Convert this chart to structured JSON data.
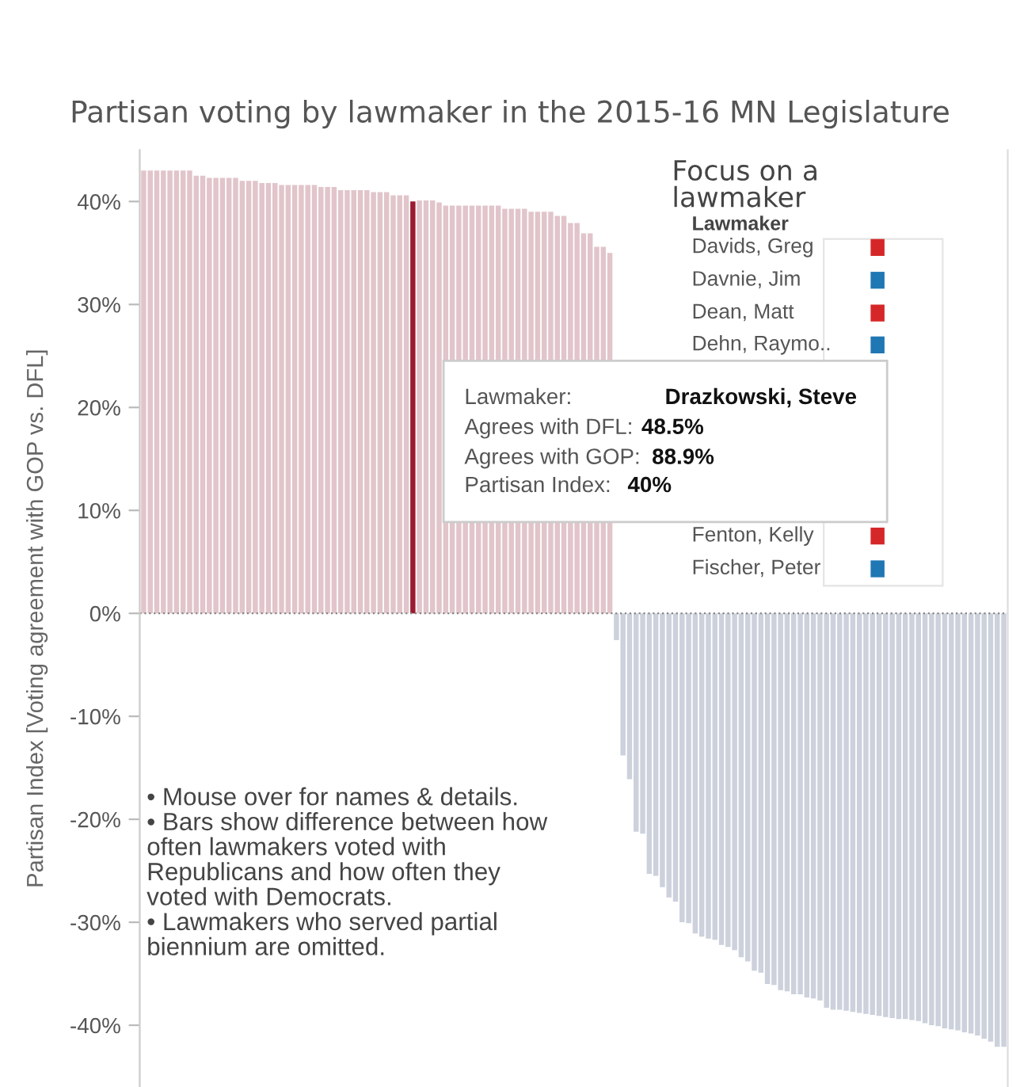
{
  "chart_data": {
    "type": "bar",
    "title": "Partisan voting by lawmaker in the 2015-16 MN Legislature",
    "ylabel": "Partisan Index [Voting agreement with GOP vs. DFL]",
    "categories": [
      null,
      null,
      null,
      null,
      null,
      null,
      null,
      null,
      null,
      null,
      null,
      null,
      null,
      null,
      null,
      null,
      null,
      null,
      null,
      null,
      null,
      null,
      null,
      null,
      null,
      null,
      null,
      null,
      null,
      null,
      null,
      null,
      null,
      null,
      null,
      null,
      null,
      null,
      null,
      null,
      null,
      null,
      null,
      null,
      null,
      null,
      null,
      null,
      null,
      null,
      null,
      null,
      null,
      null,
      null,
      null,
      null,
      null,
      null,
      null,
      null,
      null,
      null,
      null,
      null,
      null,
      null,
      null,
      null,
      null,
      null,
      null,
      null,
      null,
      null,
      null,
      null,
      null,
      null,
      null,
      null,
      null,
      null,
      null,
      null,
      null,
      null,
      null,
      null,
      null,
      null,
      null,
      null,
      null,
      null,
      null,
      null,
      null,
      null,
      null,
      null,
      null,
      null,
      null,
      null,
      null,
      null,
      null,
      null,
      null,
      null,
      null,
      null,
      null,
      null,
      null,
      null,
      null,
      null,
      null,
      null,
      null,
      null,
      null,
      null,
      null,
      null,
      null,
      null,
      null,
      null,
      null
    ],
    "values": [
      43.0,
      43.0,
      43.0,
      43.0,
      43.0,
      43.0,
      43.0,
      43.0,
      42.5,
      42.5,
      42.3,
      42.3,
      42.3,
      42.3,
      42.3,
      42.0,
      42.0,
      42.0,
      41.8,
      41.8,
      41.8,
      41.6,
      41.6,
      41.6,
      41.6,
      41.6,
      41.6,
      41.4,
      41.4,
      41.4,
      41.1,
      41.1,
      41.1,
      41.1,
      41.1,
      40.9,
      40.9,
      40.9,
      40.6,
      40.6,
      40.6,
      40,
      40.1,
      40.1,
      40.1,
      39.9,
      39.6,
      39.6,
      39.6,
      39.6,
      39.6,
      39.6,
      39.6,
      39.6,
      39.6,
      39.3,
      39.3,
      39.3,
      39.3,
      39.0,
      39.0,
      39.0,
      39.0,
      38.6,
      38.6,
      37.9,
      37.9,
      36.9,
      36.9,
      35.6,
      35.6,
      35.0,
      -2.6,
      -13.8,
      -16.1,
      -21.2,
      -21.4,
      -25.3,
      -25.5,
      -26.6,
      -27.6,
      -28.0,
      -30.0,
      -30.1,
      -31.1,
      -31.4,
      -31.6,
      -31.7,
      -32.2,
      -32.4,
      -32.7,
      -33.4,
      -33.8,
      -34.7,
      -34.9,
      -36.0,
      -36.1,
      -36.6,
      -36.7,
      -37.0,
      -37.0,
      -37.3,
      -37.4,
      -37.6,
      -38.3,
      -38.5,
      -38.5,
      -38.6,
      -38.7,
      -38.8,
      -38.9,
      -39.0,
      -39.1,
      -39.2,
      -39.3,
      -39.4,
      -39.4,
      -39.5,
      -39.6,
      -39.8,
      -40.0,
      -40.1,
      -40.3,
      -40.4,
      -40.5,
      -40.7,
      -40.8,
      -41.0,
      -41.3,
      -41.6,
      -42.1,
      -42.1
    ],
    "colors": [
      "#e1c5ca",
      "#e1c5ca",
      "#e1c5ca",
      "#e1c5ca",
      "#e1c5ca",
      "#e1c5ca",
      "#e1c5ca",
      "#e1c5ca",
      "#e1c5ca",
      "#e1c5ca",
      "#e1c5ca",
      "#e1c5ca",
      "#e1c5ca",
      "#e1c5ca",
      "#e1c5ca",
      "#e1c5ca",
      "#e1c5ca",
      "#e1c5ca",
      "#e1c5ca",
      "#e1c5ca",
      "#e1c5ca",
      "#e1c5ca",
      "#e1c5ca",
      "#e1c5ca",
      "#e1c5ca",
      "#e1c5ca",
      "#e1c5ca",
      "#e1c5ca",
      "#e1c5ca",
      "#e1c5ca",
      "#e1c5ca",
      "#e1c5ca",
      "#e1c5ca",
      "#e1c5ca",
      "#e1c5ca",
      "#e1c5ca",
      "#e1c5ca",
      "#e1c5ca",
      "#e1c5ca",
      "#e1c5ca",
      "#e1c5ca",
      "#9b1b30",
      "#e1c5ca",
      "#e1c5ca",
      "#e1c5ca",
      "#e1c5ca",
      "#e1c5ca",
      "#e1c5ca",
      "#e1c5ca",
      "#e1c5ca",
      "#e1c5ca",
      "#e1c5ca",
      "#e1c5ca",
      "#e1c5ca",
      "#e1c5ca",
      "#e1c5ca",
      "#e1c5ca",
      "#e1c5ca",
      "#e1c5ca",
      "#e1c5ca",
      "#e1c5ca",
      "#e1c5ca",
      "#e1c5ca",
      "#e1c5ca",
      "#e1c5ca",
      "#e1c5ca",
      "#e1c5ca",
      "#e1c5ca",
      "#e1c5ca",
      "#e1c5ca",
      "#e1c5ca",
      "#e1c5ca",
      "#ccd1dc",
      "#ccd1dc",
      "#ccd1dc",
      "#ccd1dc",
      "#ccd1dc",
      "#ccd1dc",
      "#ccd1dc",
      "#ccd1dc",
      "#ccd1dc",
      "#ccd1dc",
      "#ccd1dc",
      "#ccd1dc",
      "#ccd1dc",
      "#ccd1dc",
      "#ccd1dc",
      "#ccd1dc",
      "#ccd1dc",
      "#ccd1dc",
      "#ccd1dc",
      "#ccd1dc",
      "#ccd1dc",
      "#ccd1dc",
      "#ccd1dc",
      "#ccd1dc",
      "#ccd1dc",
      "#ccd1dc",
      "#ccd1dc",
      "#ccd1dc",
      "#ccd1dc",
      "#ccd1dc",
      "#ccd1dc",
      "#ccd1dc",
      "#ccd1dc",
      "#ccd1dc",
      "#ccd1dc",
      "#ccd1dc",
      "#ccd1dc",
      "#ccd1dc",
      "#ccd1dc",
      "#ccd1dc",
      "#ccd1dc",
      "#ccd1dc",
      "#ccd1dc",
      "#ccd1dc",
      "#ccd1dc",
      "#ccd1dc",
      "#ccd1dc",
      "#ccd1dc",
      "#ccd1dc",
      "#ccd1dc",
      "#ccd1dc",
      "#ccd1dc",
      "#ccd1dc",
      "#ccd1dc",
      "#ccd1dc",
      "#ccd1dc",
      "#ccd1dc",
      "#ccd1dc",
      "#ccd1dc",
      "#ccd1dc"
    ],
    "ylim": [
      -46,
      45
    ],
    "yticks": [
      {
        "value": -40,
        "label": "-40%"
      },
      {
        "value": -30,
        "label": "-30%"
      },
      {
        "value": -20,
        "label": "-20%"
      },
      {
        "value": -10,
        "label": "-10%"
      },
      {
        "value": 0,
        "label": "0%"
      },
      {
        "value": 10,
        "label": "10%"
      },
      {
        "value": 20,
        "label": "20%"
      },
      {
        "value": 30,
        "label": "30%"
      },
      {
        "value": 40,
        "label": "40%"
      }
    ],
    "ref_lines": [
      {
        "axis": "y",
        "value": 0,
        "color": "#888888",
        "line_style": "dotted"
      }
    ],
    "annotations": [
      "• Mouse over for names & details.\n• Bars show difference between how\noften lawmakers voted with\nRepublicans and how often they\nvoted with Democrats.\n• Lawmakers who served partial\nbiennium are omitted.",
      "Focus on a\nlawmaker",
      "Lawmaker",
      "Davids, Greg",
      "Davnie, Jim",
      "Dean, Matt",
      "Dehn, Raymo..",
      "Fenton, Kelly",
      "Fischer, Peter",
      "Lawmaker:",
      "Drazkowski, Steve",
      "Agrees with DFL:",
      "48.5%",
      "Agrees with GOP:",
      "88.9%",
      "Partisan Index:",
      "40%"
    ]
  }
}
